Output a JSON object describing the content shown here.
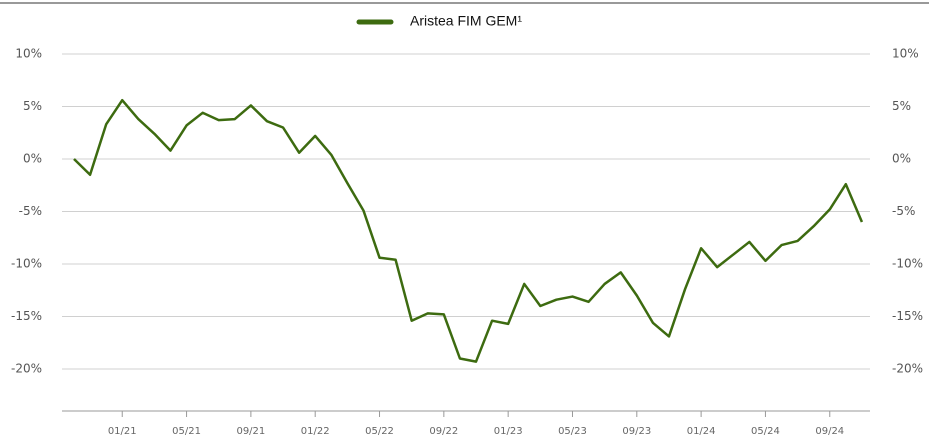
{
  "chart_data": {
    "type": "line",
    "categories": [
      null,
      null,
      null,
      "01/21",
      null,
      null,
      null,
      "05/21",
      null,
      null,
      null,
      "09/21",
      null,
      null,
      null,
      "01/22",
      null,
      null,
      null,
      "05/22",
      null,
      null,
      null,
      "09/22",
      null,
      null,
      null,
      "01/23",
      null,
      null,
      null,
      "05/23",
      null,
      null,
      null,
      "09/23",
      null,
      null,
      null,
      "01/24",
      null,
      null,
      null,
      "05/24",
      null,
      null,
      null,
      "09/24",
      null,
      null
    ],
    "series": [
      {
        "name": "Aristea FIM GEM¹",
        "color": "#3d6b10",
        "values": [
          0,
          -1.5,
          3.3,
          5.6,
          3.8,
          2.4,
          0.8,
          3.2,
          4.4,
          3.7,
          3.8,
          5.1,
          3.6,
          3.0,
          0.6,
          2.2,
          0.4,
          -2.3,
          -4.9,
          -9.4,
          -9.6,
          -15.4,
          -14.7,
          -14.8,
          -19.0,
          -19.3,
          -15.4,
          -15.7,
          -11.9,
          -14.0,
          -13.4,
          -13.1,
          -13.6,
          -11.9,
          -10.8,
          -13.0,
          -15.6,
          -16.9,
          -12.4,
          -8.5,
          -10.3,
          -9.1,
          -7.9,
          -9.7,
          -8.2,
          -7.8,
          -6.4,
          -4.8,
          -2.4,
          -6.0
        ]
      }
    ],
    "ylim": [
      -24,
      10
    ],
    "yticks": [
      {
        "value": 10,
        "label": "10%"
      },
      {
        "value": 5,
        "label": "5%"
      },
      {
        "value": 0,
        "label": "0%"
      },
      {
        "value": -5,
        "label": "-5%"
      },
      {
        "value": -10,
        "label": "-10%"
      },
      {
        "value": -15,
        "label": "-15%"
      },
      {
        "value": -20,
        "label": "-20%"
      }
    ],
    "y2lim": [
      -24,
      10
    ],
    "y2ticks": [
      {
        "value": 10,
        "label": "10%"
      },
      {
        "value": 5,
        "label": "5%"
      },
      {
        "value": 0,
        "label": "0%"
      },
      {
        "value": -5,
        "label": "-5%"
      },
      {
        "value": -10,
        "label": "-10%"
      },
      {
        "value": -15,
        "label": "-15%"
      },
      {
        "value": -20,
        "label": "-20%"
      }
    ],
    "grid": true,
    "legend": "top"
  }
}
